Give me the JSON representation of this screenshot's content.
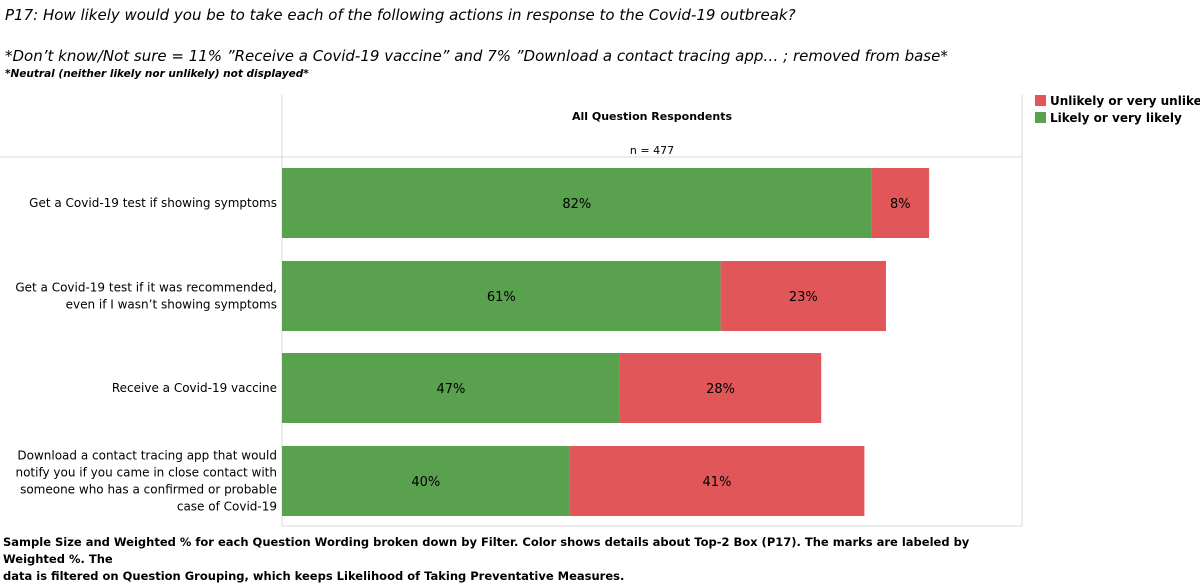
{
  "header": {
    "question": "P17: How likely would you be to take each of the following actions in response to the Covid-19 outbreak?",
    "note_dont_know": "*Don’t know/Not sure = 11% ”Receive a Covid-19 vaccine” and 7% ”Download a contact tracing app… ; removed from base*",
    "note_neutral": "*Neutral (neither likely nor unlikely) not displayed*"
  },
  "legend": {
    "items": [
      {
        "label": "Unlikely or very unlikely",
        "color": "#e15759"
      },
      {
        "label": "Likely or very likely",
        "color": "#59a14f"
      }
    ]
  },
  "footer": {
    "line1": "Sample Size  and Weighted % for each Question Wording broken down by Filter.  Color shows details about Top-2 Box (P17).  The marks are labeled by Weighted %. The",
    "line2": "data is filtered on Question Grouping, which keeps Likelihood of Taking Preventative Measures."
  },
  "chart_data": {
    "type": "bar",
    "orientation": "horizontal",
    "stacked": true,
    "column_header": "All Question Respondents",
    "sample_size_label": "n = 477",
    "categories": [
      [
        "Get a Covid-19 test if showing symptoms"
      ],
      [
        "Get a Covid-19 test if it was recommended,",
        "even if I wasn’t showing symptoms"
      ],
      [
        "Receive a Covid-19 vaccine"
      ],
      [
        "Download a contact tracing app that would",
        "notify you if you came in close contact with",
        "someone who has a confirmed or probable",
        "case of Covid-19"
      ]
    ],
    "series": [
      {
        "name": "Likely or very likely",
        "color": "#59a14f",
        "values": [
          82,
          61,
          47,
          40
        ],
        "labels": [
          "82%",
          "61%",
          "47%",
          "40%"
        ]
      },
      {
        "name": "Unlikely or very unlikely",
        "color": "#e15759",
        "values": [
          8,
          23,
          28,
          41
        ],
        "labels": [
          "8%",
          "23%",
          "28%",
          "41%"
        ]
      }
    ],
    "xlim": [
      0,
      94
    ],
    "legend_position": "top-right",
    "grid": false
  }
}
